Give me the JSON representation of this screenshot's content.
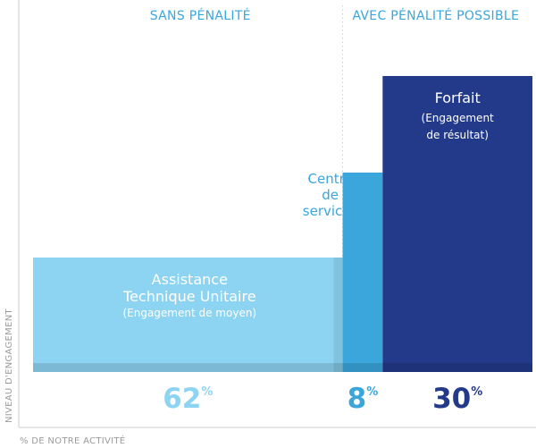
{
  "chart_data": {
    "type": "bar",
    "subtype": "variable-width (marimekko)",
    "xlabel": "% DE NOTRE ACTIVITÉ",
    "ylabel": "NIVEAU D'ENGAGEMENT",
    "sections": [
      {
        "label": "SANS PÉNALITÉ",
        "color": "#3aa6dc"
      },
      {
        "label": "AVEC PÉNALITÉ POSSIBLE",
        "color": "#3aa6dc"
      }
    ],
    "categories": [
      "Assistance Technique Unitaire",
      "Centre de services",
      "Forfait"
    ],
    "series": [
      {
        "label_lines": [
          "Assistance",
          "Technique Unitaire"
        ],
        "sublabel_lines": [
          "(Engagement de moyen)"
        ],
        "label_position": "inside",
        "share_percent": 62,
        "percent_sign": "%",
        "engagement_level": 1,
        "color": "#8dd3f2",
        "label_color": "#ffffff",
        "percent_color": "#8dd3f2"
      },
      {
        "label_lines": [
          "Centre",
          "de",
          "services"
        ],
        "sublabel_lines": [],
        "label_position": "above",
        "share_percent": 8,
        "percent_sign": "%",
        "engagement_level": 2,
        "color": "#3aa6dc",
        "label_color": "#3aa6dc",
        "percent_color": "#3aa6dc"
      },
      {
        "label_lines": [
          "Forfait"
        ],
        "sublabel_lines": [
          "(Engagement",
          "de résultat)"
        ],
        "label_position": "inside",
        "share_percent": 30,
        "percent_sign": "%",
        "engagement_level": 3,
        "color": "#233a8b",
        "label_color": "#ffffff",
        "percent_color": "#233a8b"
      }
    ],
    "divider": {
      "style": "dotted",
      "color": "#cccccc"
    },
    "axis_color": "#cccccc"
  }
}
